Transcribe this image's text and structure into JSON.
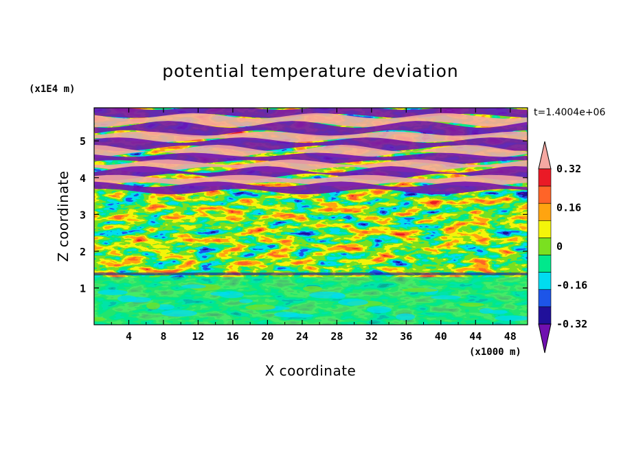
{
  "chart_data": {
    "type": "heatmap",
    "title": "potential temperature deviation",
    "xlabel": "X coordinate",
    "ylabel": "Z coordinate",
    "x_unit": "(x1000 m)",
    "y_unit": "(x1E4 m)",
    "time_label": "t=1.4004e+06",
    "xlim": [
      0,
      50
    ],
    "ylim": [
      0,
      5.9
    ],
    "x_ticks": [
      4,
      8,
      12,
      16,
      20,
      24,
      28,
      32,
      36,
      40,
      44,
      48
    ],
    "x_tick_labels": [
      "4",
      "8",
      "12",
      "16",
      "20",
      "24",
      "28",
      "32",
      "36",
      "40",
      "44",
      "48"
    ],
    "y_ticks": [
      1,
      2,
      3,
      4,
      5
    ],
    "y_tick_labels": [
      "1",
      "2",
      "3",
      "4",
      "5"
    ],
    "colorbar": {
      "levels": [
        -0.4,
        -0.32,
        -0.24,
        -0.16,
        -0.08,
        0,
        0.08,
        0.16,
        0.24,
        0.32,
        0.4
      ],
      "labels": [
        "0.32",
        "0.16",
        "0",
        "-0.16",
        "-0.32"
      ],
      "label_values": [
        0.32,
        0.16,
        0,
        -0.16,
        -0.32
      ],
      "colors": [
        "#7010b0",
        "#20109a",
        "#1d55e8",
        "#00dcf0",
        "#00e88c",
        "#7ae020",
        "#f4f40a",
        "#ffa410",
        "#ff6428",
        "#ea1a26",
        "#f6a8a2"
      ],
      "extend": "both"
    },
    "field_structure": [
      {
        "z_range": [
          0,
          1.3
        ],
        "description": "mostly green/cyan with small orange and red patches"
      },
      {
        "z_range": [
          1.3,
          3.6
        ],
        "description": "mixed red, yellow, cyan, blue and purple layered patches"
      },
      {
        "z_range": [
          3.6,
          5.9
        ],
        "description": "alternating pink and purple horizontal bands"
      }
    ]
  }
}
